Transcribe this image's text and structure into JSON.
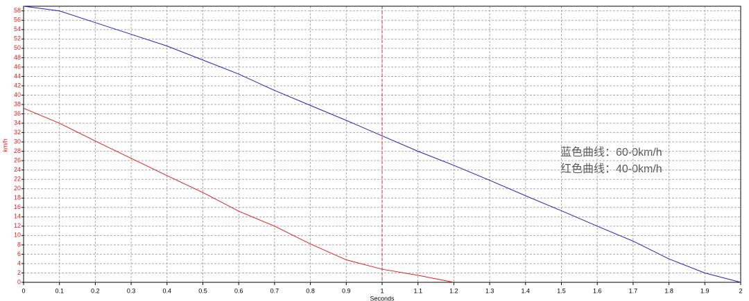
{
  "chart_data": {
    "type": "line",
    "xlabel": "Seconds",
    "ylabel": "km/h",
    "x": [
      0,
      0.1,
      0.2,
      0.3,
      0.4,
      0.5,
      0.6,
      0.7,
      0.8,
      0.9,
      1,
      1.1,
      1.2,
      1.3,
      1.4,
      1.5,
      1.6,
      1.7,
      1.8,
      1.9,
      2
    ],
    "series": [
      {
        "color": "#2020c0",
        "values": [
          59,
          58,
          55.5,
          53,
          50.5,
          47.5,
          44.5,
          41,
          37.8,
          34.6,
          31.3,
          28,
          25,
          21.8,
          18.5,
          15.3,
          12,
          8.8,
          5,
          2,
          0
        ]
      },
      {
        "color": "#e02020",
        "values": [
          37.2,
          34,
          30.2,
          26.5,
          22.8,
          19.2,
          15.2,
          12,
          8.2,
          4.8,
          2.8,
          1.5,
          0,
          null,
          null,
          null,
          null,
          null,
          null,
          null,
          null
        ]
      }
    ],
    "xlim": [
      0,
      2
    ],
    "ylim": [
      0,
      59
    ],
    "xticks": [
      0,
      0.1,
      0.2,
      0.3,
      0.4,
      0.5,
      0.6,
      0.7,
      0.8,
      0.9,
      1,
      1.1,
      1.2,
      1.3,
      1.4,
      1.5,
      1.6,
      1.7,
      1.8,
      1.9,
      2
    ],
    "yticks": [
      0,
      2,
      4,
      6,
      8,
      10,
      12,
      14,
      16,
      18,
      20,
      22,
      24,
      26,
      28,
      30,
      32,
      34,
      36,
      38,
      40,
      42,
      44,
      46,
      48,
      50,
      52,
      54,
      56,
      58
    ],
    "grid": true,
    "vline": {
      "x": 1,
      "color": "#e02020"
    },
    "annotations": [
      "蓝色曲线：60-0km/h",
      "红色曲线：40-0km/h"
    ]
  }
}
